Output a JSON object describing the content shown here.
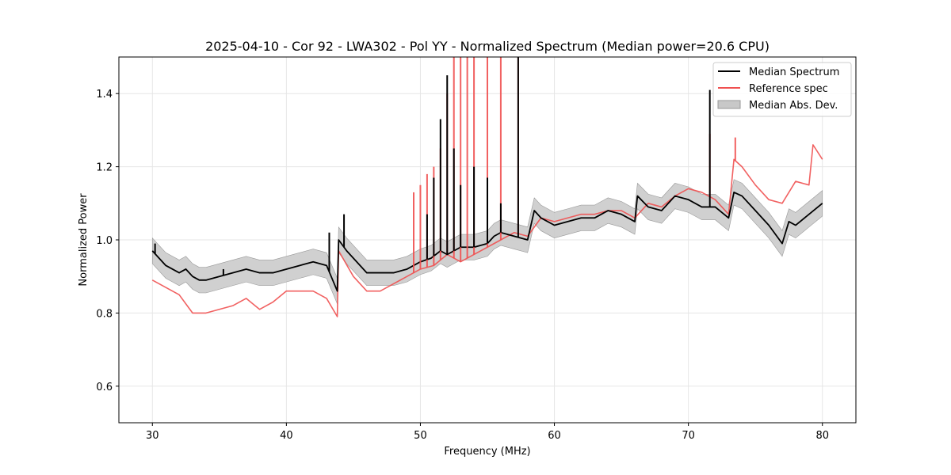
{
  "chart_data": {
    "type": "line",
    "title": "2025-04-10 - Cor 92 - LWA302 - Pol YY - Normalized Spectrum (Median power=20.6 CPU)",
    "xlabel": "Frequency (MHz)",
    "ylabel": "Normalized Power",
    "xlim": [
      27.5,
      82.5
    ],
    "ylim": [
      0.5,
      1.5
    ],
    "xticks": [
      30,
      40,
      50,
      60,
      70,
      80
    ],
    "yticks": [
      0.6,
      0.8,
      1.0,
      1.2,
      1.4
    ],
    "ytick_labels": [
      "0.6",
      "0.8",
      "1.0",
      "1.2",
      "1.4"
    ],
    "grid": true,
    "legend_position": "top-right",
    "series": [
      {
        "name": "Median Spectrum",
        "color": "#000000",
        "x": [
          30,
          30.5,
          31,
          31.5,
          32,
          32.5,
          33,
          33.5,
          34,
          35,
          36,
          37,
          38,
          39,
          40,
          41,
          42,
          43,
          43.8,
          43.9,
          44.5,
          45,
          46,
          47,
          48,
          49,
          50,
          50.8,
          51.5,
          52,
          52.5,
          53,
          54,
          55,
          55.5,
          56,
          57,
          58,
          58.5,
          59,
          60,
          61,
          62,
          63,
          64,
          65,
          66,
          66.2,
          67,
          68,
          69,
          70,
          71,
          72,
          73,
          73.4,
          74,
          75,
          76,
          77,
          77.5,
          78,
          79,
          80
        ],
        "y": [
          0.97,
          0.95,
          0.93,
          0.92,
          0.91,
          0.92,
          0.9,
          0.89,
          0.89,
          0.9,
          0.91,
          0.92,
          0.91,
          0.91,
          0.92,
          0.93,
          0.94,
          0.93,
          0.86,
          1.0,
          0.97,
          0.95,
          0.91,
          0.91,
          0.91,
          0.92,
          0.94,
          0.95,
          0.97,
          0.96,
          0.97,
          0.98,
          0.98,
          0.99,
          1.01,
          1.02,
          1.01,
          1.0,
          1.08,
          1.06,
          1.04,
          1.05,
          1.06,
          1.06,
          1.08,
          1.07,
          1.05,
          1.12,
          1.09,
          1.08,
          1.12,
          1.11,
          1.09,
          1.09,
          1.06,
          1.13,
          1.12,
          1.08,
          1.04,
          0.99,
          1.05,
          1.04,
          1.07,
          1.1
        ],
        "spikes": [
          {
            "x": 30.2,
            "y": 0.99
          },
          {
            "x": 35.3,
            "y": 0.92
          },
          {
            "x": 43.2,
            "y": 1.02
          },
          {
            "x": 44.3,
            "y": 1.07
          },
          {
            "x": 50.5,
            "y": 1.07
          },
          {
            "x": 51.0,
            "y": 1.17
          },
          {
            "x": 51.5,
            "y": 1.33
          },
          {
            "x": 52.0,
            "y": 1.45
          },
          {
            "x": 52.5,
            "y": 1.25
          },
          {
            "x": 53.0,
            "y": 1.15
          },
          {
            "x": 54.0,
            "y": 1.2
          },
          {
            "x": 55.0,
            "y": 1.17
          },
          {
            "x": 56.0,
            "y": 1.1
          },
          {
            "x": 57.3,
            "y": 1.5
          },
          {
            "x": 71.6,
            "y": 1.41
          }
        ]
      },
      {
        "name": "Reference spec",
        "color": "#f05050",
        "x": [
          30,
          31,
          32,
          33,
          34,
          35,
          36,
          37,
          38,
          39,
          40,
          41,
          42,
          43,
          43.8,
          43.9,
          45,
          46,
          47,
          48,
          49,
          50,
          51,
          52,
          53,
          54,
          55,
          56,
          57,
          58,
          59,
          60,
          61,
          62,
          63,
          64,
          65,
          66,
          67,
          68,
          69,
          70,
          71,
          72,
          73,
          73.4,
          74,
          75,
          76,
          77,
          78,
          79,
          79.3,
          80
        ],
        "y": [
          0.89,
          0.87,
          0.85,
          0.8,
          0.8,
          0.81,
          0.82,
          0.84,
          0.81,
          0.83,
          0.86,
          0.86,
          0.86,
          0.84,
          0.79,
          0.97,
          0.9,
          0.86,
          0.86,
          0.88,
          0.9,
          0.92,
          0.93,
          0.96,
          0.94,
          0.96,
          0.98,
          1.0,
          1.02,
          1.01,
          1.06,
          1.05,
          1.06,
          1.07,
          1.07,
          1.08,
          1.08,
          1.06,
          1.1,
          1.09,
          1.12,
          1.14,
          1.13,
          1.11,
          1.07,
          1.22,
          1.2,
          1.15,
          1.11,
          1.1,
          1.16,
          1.15,
          1.26,
          1.22
        ],
        "spikes": [
          {
            "x": 49.5,
            "y": 1.13
          },
          {
            "x": 50.0,
            "y": 1.15
          },
          {
            "x": 50.5,
            "y": 1.18
          },
          {
            "x": 51.0,
            "y": 1.2
          },
          {
            "x": 51.5,
            "y": 1.25
          },
          {
            "x": 52.0,
            "y": 1.4
          },
          {
            "x": 52.5,
            "y": 1.5
          },
          {
            "x": 53.0,
            "y": 1.5
          },
          {
            "x": 53.5,
            "y": 1.5
          },
          {
            "x": 54.0,
            "y": 1.5
          },
          {
            "x": 55.0,
            "y": 1.5
          },
          {
            "x": 56.0,
            "y": 1.5
          },
          {
            "x": 57.3,
            "y": 1.5
          },
          {
            "x": 71.6,
            "y": 1.29
          },
          {
            "x": 73.5,
            "y": 1.28
          }
        ]
      },
      {
        "name": "Median Abs. Dev.",
        "type": "band",
        "color": "#c8c8c8",
        "edge_color": "#999999",
        "half_width": 0.035
      }
    ]
  }
}
